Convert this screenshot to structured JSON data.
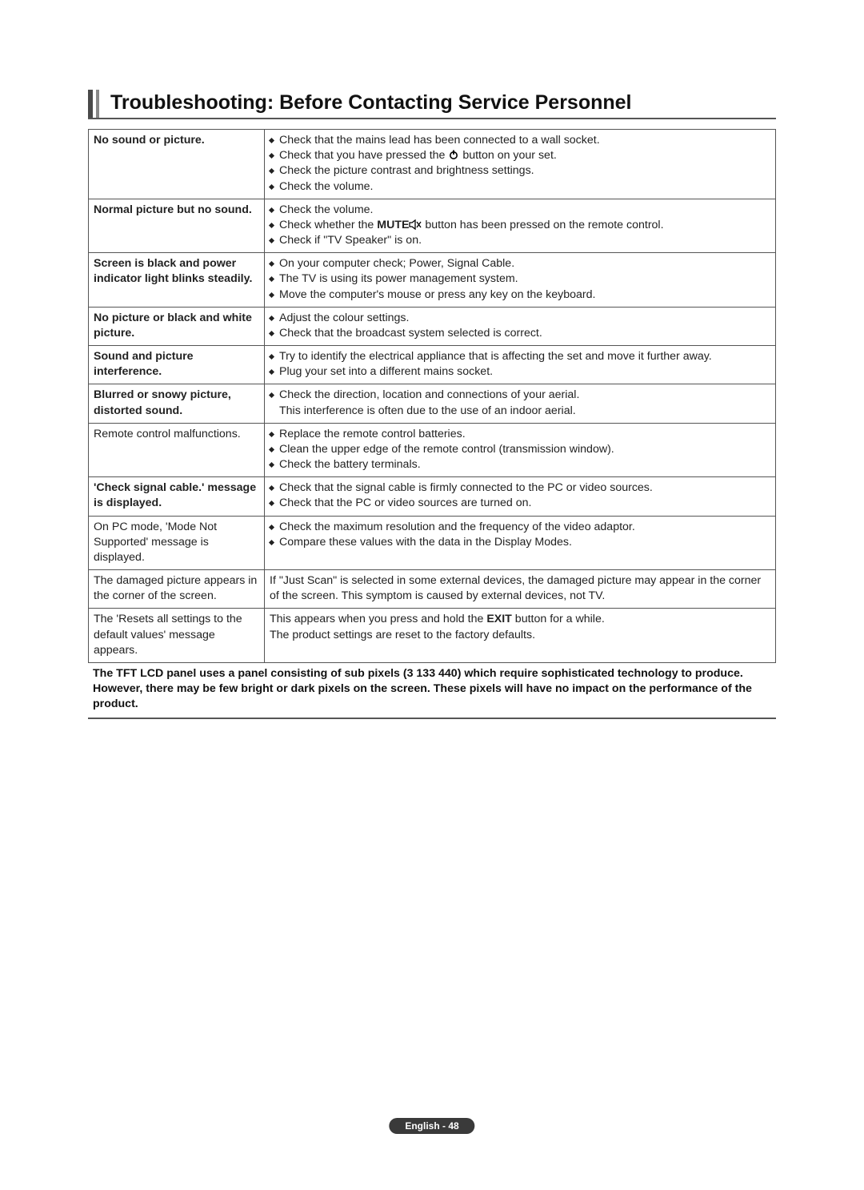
{
  "title": "Troubleshooting: Before Contacting Service Personnel",
  "footnote": "The TFT LCD panel uses a panel consisting of sub pixels (3 133 440) which require sophisticated technology to produce. However, there may be few bright or dark pixels on the screen. These pixels will have no impact on the performance of the product.",
  "page_label": "English - 48",
  "colors": {
    "border": "#555555",
    "text": "#222222",
    "title_bar_dark": "#4a4a4a",
    "title_bar_light": "#888888",
    "badge_bg": "#3a3a3a",
    "badge_text": "#ffffff"
  },
  "rows": [
    {
      "problem": "No sound or picture.",
      "problem_bold": true,
      "solutions": [
        {
          "text": "Check that the mains lead has been connected to a wall socket."
        },
        {
          "prefix": "Check that you have pressed the ",
          "icon": "power",
          "suffix": " button on your set."
        },
        {
          "text": "Check the picture contrast and brightness settings."
        },
        {
          "text": "Check the volume."
        }
      ]
    },
    {
      "problem": "Normal picture but no sound.",
      "problem_bold": true,
      "solutions": [
        {
          "text": "Check the volume."
        },
        {
          "prefix": "Check whether the ",
          "bold": "MUTE",
          "icon": "mute",
          "suffix": " button has been pressed on the remote control."
        },
        {
          "text": "Check if \"TV Speaker\" is on."
        }
      ]
    },
    {
      "problem": "Screen is black and power indicator light blinks steadily.",
      "problem_bold": true,
      "solutions": [
        {
          "text": "On your computer check; Power, Signal Cable."
        },
        {
          "text": "The TV is using its power management system."
        },
        {
          "text": "Move the computer's mouse or press any key on the keyboard."
        }
      ]
    },
    {
      "problem": "No picture or black and white picture.",
      "problem_bold": true,
      "solutions": [
        {
          "text": "Adjust the colour settings."
        },
        {
          "text": "Check that the broadcast system selected is correct."
        }
      ]
    },
    {
      "problem": "Sound and picture interference.",
      "problem_bold": true,
      "solutions": [
        {
          "text": "Try to identify the electrical appliance that is affecting the set and move it further away.",
          "wrap": true
        },
        {
          "text": "Plug your set into a different mains socket."
        }
      ]
    },
    {
      "problem": "Blurred or snowy picture, distorted sound.",
      "problem_bold": true,
      "solutions": [
        {
          "text": "Check the direction, location and connections of your aerial."
        },
        {
          "cont": true,
          "text": "This interference is often due to the use of an indoor aerial."
        }
      ]
    },
    {
      "problem": "Remote control malfunctions.",
      "problem_bold": false,
      "solutions": [
        {
          "text": "Replace the remote control batteries."
        },
        {
          "text": "Clean the upper edge of the remote control (transmission window)."
        },
        {
          "text": "Check the battery terminals."
        }
      ]
    },
    {
      "problem": "'Check signal cable.' message is displayed.",
      "problem_bold": true,
      "solutions": [
        {
          "text": "Check that the signal cable is firmly connected to the PC or video sources."
        },
        {
          "text": "Check that the PC or video sources are turned on."
        }
      ]
    },
    {
      "problem": "On PC mode, 'Mode Not Supported' message is displayed.",
      "problem_bold": false,
      "solutions": [
        {
          "text": "Check the maximum resolution and the frequency of the video adaptor."
        },
        {
          "text": "Compare these values with the data in the Display Modes."
        }
      ]
    },
    {
      "problem": "The damaged picture appears in the corner of the screen.",
      "problem_bold": false,
      "plain": "If \"Just Scan\" is selected in some external devices, the damaged picture may appear in the corner of the screen. This symptom is caused by external devices, not TV."
    },
    {
      "problem": "The 'Resets all settings to the default values' message appears.",
      "problem_bold": false,
      "plain_parts": [
        {
          "text": "This appears when you press and hold the "
        },
        {
          "bold": "EXIT"
        },
        {
          "text": " button for a while."
        },
        {
          "br": true
        },
        {
          "text": "The product settings are reset to the factory defaults."
        }
      ]
    }
  ]
}
